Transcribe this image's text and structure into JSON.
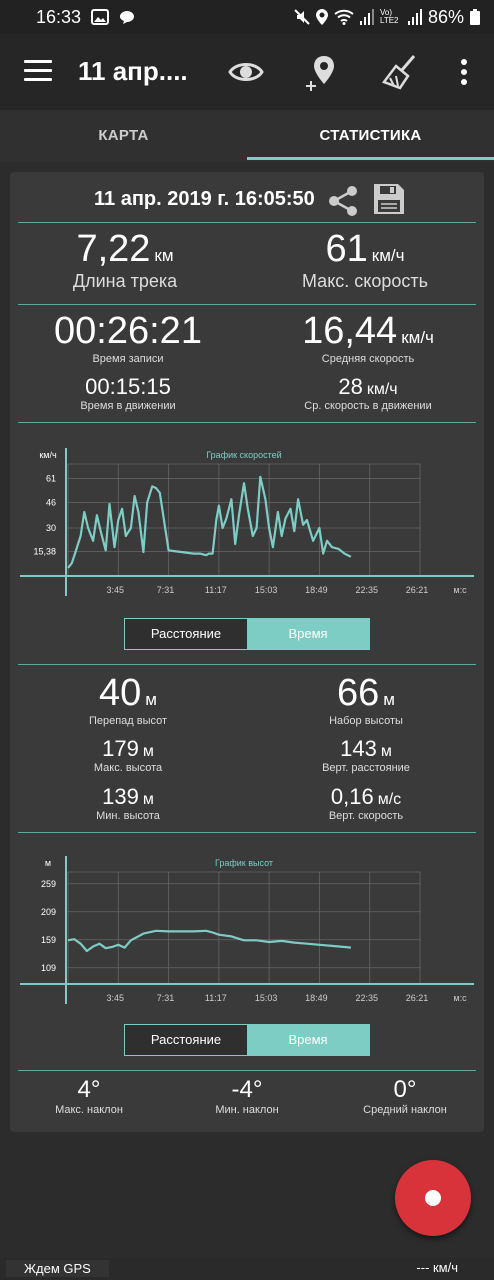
{
  "status_bar": {
    "time": "16:33",
    "network_label": "Vo) LTE2",
    "battery": "86%"
  },
  "app_bar": {
    "title": "11 апр...."
  },
  "tabs": [
    {
      "label": "КАРТА"
    },
    {
      "label": "СТАТИСТИКА"
    }
  ],
  "card": {
    "date": "11 апр. 2019 г. 16:05:50",
    "track_length": {
      "value": "7,22",
      "unit": "км",
      "label": "Длина трека"
    },
    "max_speed": {
      "value": "61",
      "unit": "км/ч",
      "label": "Макс. скорость"
    },
    "record_time": {
      "value": "00:26:21",
      "label": "Время записи"
    },
    "avg_speed": {
      "value": "16,44",
      "unit": "км/ч",
      "label": "Средняя скорость"
    },
    "moving_time": {
      "value": "00:15:15",
      "label": "Время в движении"
    },
    "avg_moving_speed": {
      "value": "28",
      "unit": "км/ч",
      "label": "Ср. скорость в движении"
    },
    "elev_diff": {
      "value": "40",
      "unit": "м",
      "label": "Перепад высот"
    },
    "elev_gain": {
      "value": "66",
      "unit": "м",
      "label": "Набор высоты"
    },
    "max_elev": {
      "value": "179",
      "unit": "м",
      "label": "Макс. высота"
    },
    "vert_distance": {
      "value": "143",
      "unit": "м",
      "label": "Верт. расстояние"
    },
    "min_elev": {
      "value": "139",
      "unit": "м",
      "label": "Мин. высота"
    },
    "vert_speed": {
      "value": "0,16",
      "unit": "м/с",
      "label": "Верт. скорость"
    },
    "max_incline": {
      "value": "4°",
      "label": "Макс. наклон"
    },
    "min_incline": {
      "value": "-4°",
      "label": "Мин. наклон"
    },
    "avg_incline": {
      "value": "0°",
      "label": "Средний наклон"
    },
    "toggle1": {
      "distance": "Расстояние",
      "time": "Время"
    },
    "toggle2": {
      "distance": "Расстояние",
      "time": "Время"
    }
  },
  "chart_data": [
    {
      "type": "line",
      "title": "График скоростей",
      "ylabel": "км/ч",
      "xlabel": "м:с",
      "y_ticks": [
        "61",
        "46",
        "30",
        "15,38"
      ],
      "x_ticks": [
        "3:45",
        "7:31",
        "11:17",
        "15:03",
        "18:49",
        "22:35",
        "26:21"
      ],
      "ylim": [
        0,
        70
      ],
      "xlim": [
        0,
        28
      ],
      "color": "#7ecdc4",
      "series": [
        {
          "x": [
            0,
            0.3,
            0.6,
            1.0,
            1.3,
            1.6,
            2.0,
            2.3,
            2.6,
            3.0,
            3.3,
            3.7,
            4.0,
            4.3,
            4.6,
            5.0,
            5.3,
            5.6,
            6.0,
            6.3,
            6.7,
            7.0,
            7.3,
            8.0,
            9.0,
            10.0,
            10.5,
            11.0,
            11.2,
            11.5,
            11.8,
            12.0,
            12.3,
            12.6,
            13.0,
            13.3,
            13.6,
            14.0,
            14.3,
            14.7,
            15.0,
            15.3,
            15.7,
            16.0,
            16.3,
            16.7,
            17.0,
            17.3,
            17.7,
            18.0,
            18.3,
            18.7,
            19.0,
            19.5,
            20.0,
            20.3,
            20.6,
            21.0,
            21.5,
            22.0,
            22.5
          ],
          "y": [
            5,
            8,
            15,
            25,
            40,
            30,
            22,
            38,
            28,
            16,
            45,
            18,
            35,
            42,
            25,
            30,
            50,
            40,
            15,
            46,
            56,
            55,
            52,
            16,
            15,
            14,
            14,
            13,
            14,
            14,
            35,
            44,
            30,
            36,
            48,
            20,
            38,
            58,
            42,
            25,
            30,
            62,
            48,
            30,
            18,
            40,
            25,
            36,
            42,
            28,
            48,
            32,
            35,
            22,
            30,
            14,
            22,
            18,
            17,
            14,
            12
          ]
        }
      ]
    },
    {
      "type": "line",
      "title": "График высот",
      "ylabel": "м",
      "xlabel": "м:с",
      "y_ticks": [
        "259",
        "209",
        "159",
        "109"
      ],
      "x_ticks": [
        "3:45",
        "7:31",
        "11:17",
        "15:03",
        "18:49",
        "22:35",
        "26:21"
      ],
      "ylim": [
        80,
        280
      ],
      "xlim": [
        0,
        28
      ],
      "color": "#7ecdc4",
      "series": [
        {
          "x": [
            0,
            0.5,
            1.0,
            1.5,
            2.0,
            2.5,
            3.0,
            3.5,
            4.0,
            4.5,
            5.0,
            6.0,
            7.0,
            8.0,
            9.0,
            10.0,
            11.0,
            11.5,
            12.0,
            13.0,
            14.0,
            15.0,
            16.0,
            17.0,
            18.0,
            19.0,
            20.0,
            21.0,
            22.0,
            22.5
          ],
          "y": [
            158,
            160,
            152,
            139,
            147,
            152,
            144,
            146,
            150,
            145,
            158,
            170,
            175,
            174,
            174,
            174,
            175,
            172,
            168,
            165,
            158,
            158,
            155,
            157,
            154,
            152,
            150,
            148,
            146,
            145
          ]
        }
      ]
    }
  ]
}
